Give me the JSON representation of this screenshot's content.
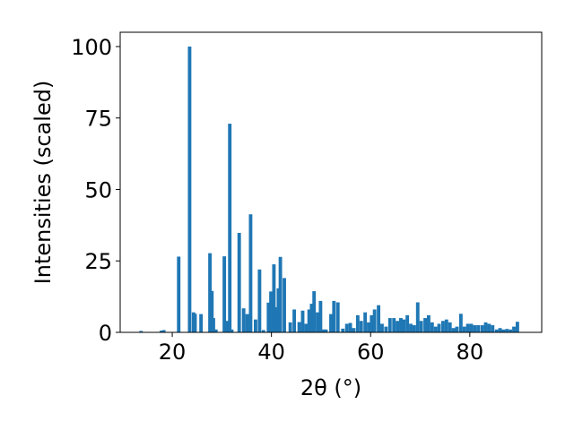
{
  "chart_data": {
    "type": "bar",
    "title": "",
    "xlabel": "2θ (°)",
    "ylabel": "Intensities (scaled)",
    "xlim": [
      9.5,
      94.5
    ],
    "ylim": [
      0,
      105
    ],
    "xticks": [
      20,
      40,
      60,
      80
    ],
    "yticks": [
      0,
      25,
      50,
      75,
      100
    ],
    "grid": false,
    "bar_width_deg": 0.7,
    "bar_color": "#1f77b4",
    "x": [
      13.7,
      17.8,
      18.3,
      21.3,
      23.5,
      24.3,
      24.6,
      25.8,
      27.6,
      28.0,
      28.3,
      28.8,
      30.5,
      31.1,
      31.6,
      32.0,
      33.5,
      34.4,
      35.1,
      35.8,
      36.8,
      37.6,
      38.4,
      39.4,
      39.9,
      40.5,
      41.0,
      41.4,
      41.8,
      42.6,
      43.8,
      44.6,
      45.6,
      46.3,
      47.0,
      47.6,
      48.1,
      48.6,
      49.3,
      49.9,
      50.5,
      51.0,
      52.0,
      52.6,
      53.4,
      54.4,
      55.2,
      55.9,
      56.6,
      57.4,
      58.1,
      58.9,
      59.6,
      60.2,
      60.8,
      61.6,
      62.3,
      63.1,
      63.9,
      64.7,
      65.4,
      66.1,
      66.7,
      67.4,
      68.1,
      68.8,
      69.5,
      70.2,
      71.0,
      71.7,
      72.4,
      73.1,
      73.8,
      74.6,
      75.3,
      76.0,
      76.7,
      77.4,
      78.2,
      78.9,
      79.6,
      80.3,
      81.0,
      81.7,
      82.5,
      83.2,
      83.9,
      84.6,
      85.4,
      86.1,
      86.8,
      87.5,
      88.2,
      88.9,
      89.6
    ],
    "values": [
      0.5,
      0.6,
      0.8,
      26.5,
      100,
      7,
      6.5,
      6.4,
      27.7,
      14.5,
      5,
      1,
      26.6,
      4,
      73,
      1,
      34.8,
      8.4,
      6.4,
      41.3,
      4.5,
      22,
      0.8,
      10.4,
      14.3,
      23.8,
      8.8,
      15.4,
      26.4,
      19,
      3.5,
      8,
      3.6,
      7.6,
      3,
      8,
      10,
      14.4,
      7,
      11,
      1,
      1,
      6.4,
      11,
      10.5,
      1.3,
      3,
      3.3,
      1.5,
      6,
      4,
      7,
      3.5,
      6,
      8,
      9.5,
      3,
      2,
      5,
      5,
      4,
      5,
      4.5,
      6,
      3,
      2.5,
      10.5,
      4,
      5,
      6,
      3.5,
      2,
      3,
      4,
      4.5,
      3.5,
      1.5,
      2,
      6.5,
      2,
      3,
      3,
      2.5,
      2.5,
      2.5,
      3.5,
      3,
      2.5,
      1,
      1.5,
      1,
      1.2,
      1,
      2,
      3.7
    ]
  }
}
